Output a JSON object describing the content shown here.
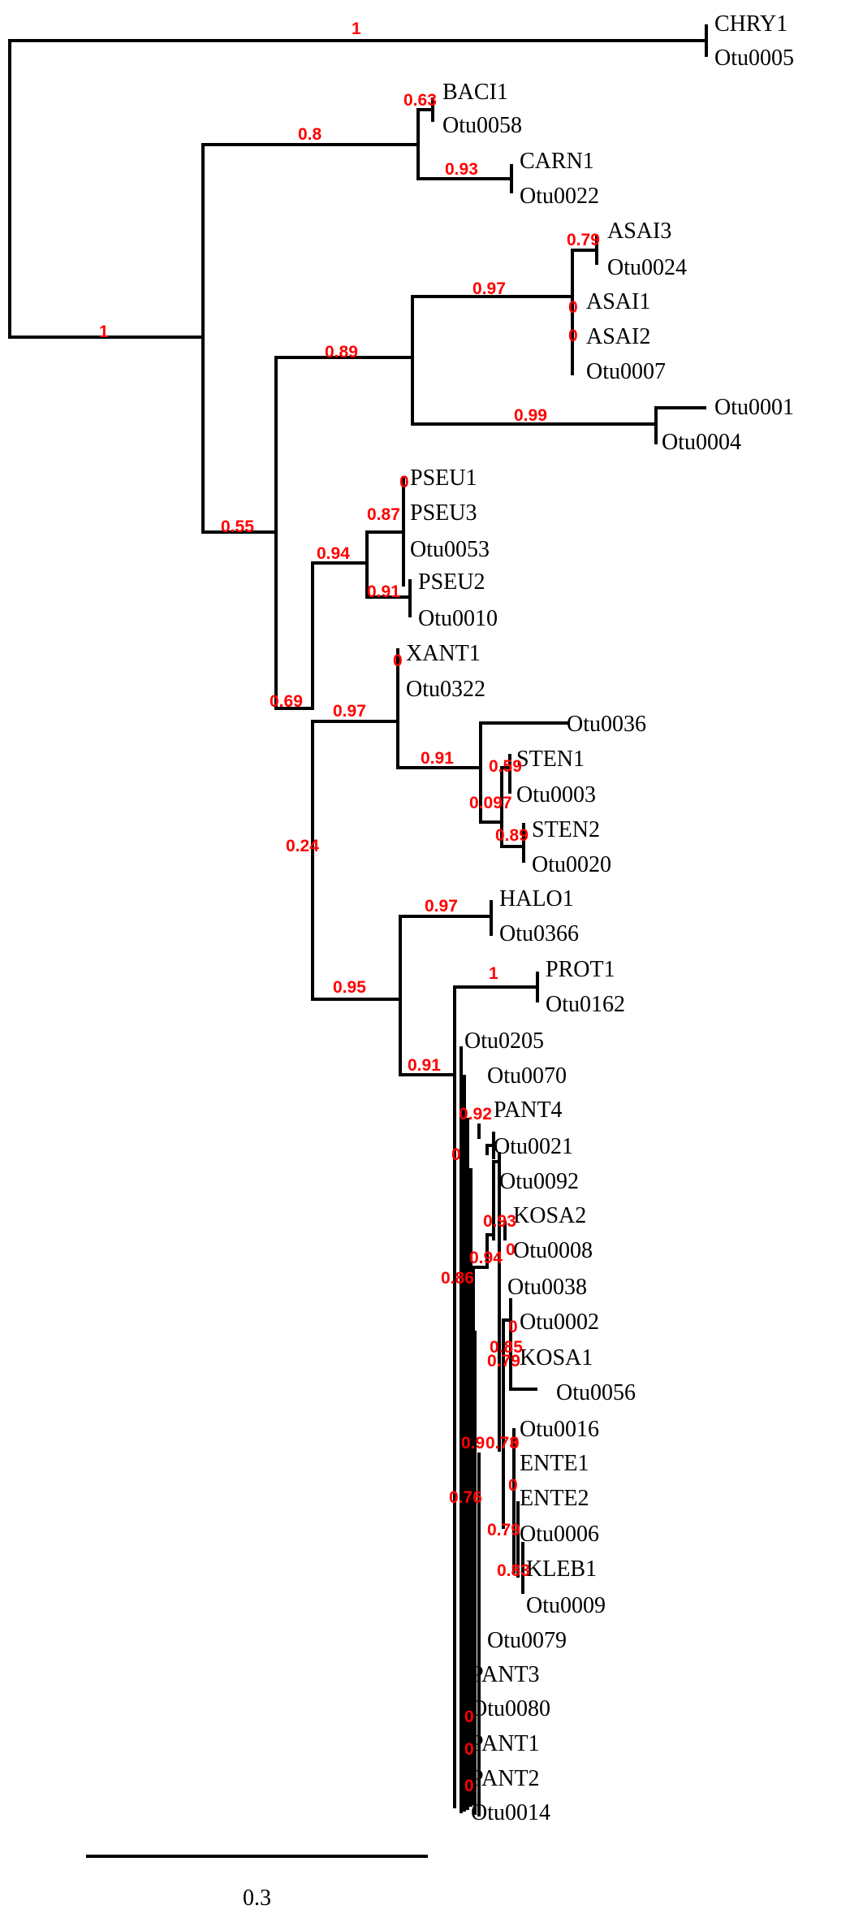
{
  "tree": {
    "tip_labels": [
      "CHRY1",
      "Otu0005",
      "BACI1",
      "Otu0058",
      "CARN1",
      "Otu0022",
      "ASAI3",
      "Otu0024",
      "ASAI1",
      "ASAI2",
      "Otu0007",
      "Otu0001",
      "Otu0004",
      "PSEU1",
      "PSEU3",
      "Otu0053",
      "PSEU2",
      "Otu0010",
      "XANT1",
      "Otu0322",
      "Otu0036",
      "STEN1",
      "Otu0003",
      "STEN2",
      "Otu0020",
      "HALO1",
      "Otu0366",
      "PROT1",
      "Otu0162",
      "Otu0205",
      "Otu0070",
      "PANT4",
      "Otu0021",
      "Otu0092",
      "KOSA2",
      "Otu0008",
      "Otu0038",
      "Otu0002",
      "KOSA1",
      "Otu0056",
      "Otu0016",
      "ENTE1",
      "ENTE2",
      "Otu0006",
      "KLEB1",
      "Otu0009",
      "Otu0079",
      "PANT3",
      "Otu0080",
      "PANT1",
      "PANT2",
      "Otu0014"
    ],
    "support_values": [
      "1",
      "1",
      "0.8",
      "0.63",
      "0.93",
      "0.89",
      "0.97",
      "0.79",
      "0",
      "0",
      "0.99",
      "0.55",
      "0.94",
      "0",
      "0.87",
      "0.91",
      "0.69",
      "0.97",
      "0",
      "0.91",
      "0.59",
      "0.097",
      "0.89",
      "0.24",
      "0.95",
      "0.97",
      "0.91",
      "1",
      "0",
      "0.92",
      "0.86",
      "0.93",
      "0.94",
      "0",
      "0.85",
      "0.79",
      "0",
      "0.9",
      "0.73",
      "0",
      "0",
      "0.76",
      "0.79",
      "0.83",
      "0",
      "0",
      "0"
    ],
    "scale_bar": {
      "value": 0.3,
      "label": "0.3"
    }
  },
  "colors": {
    "branch": "#000000",
    "support": "#ff0000"
  }
}
